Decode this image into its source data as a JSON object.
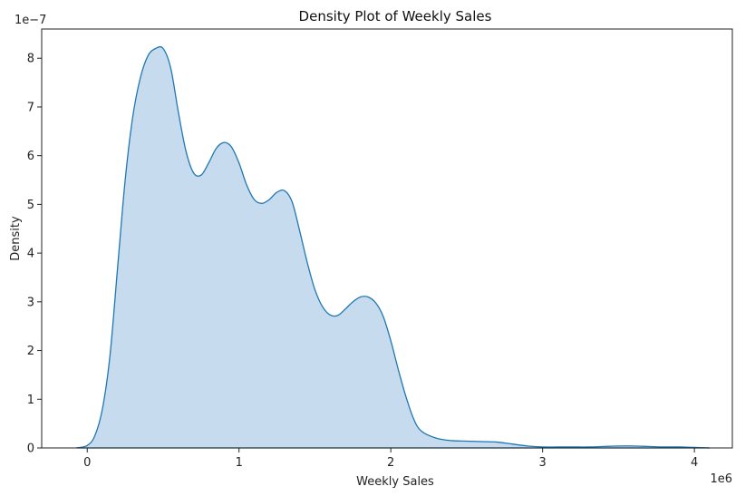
{
  "chart_data": {
    "type": "area",
    "title": "Density Plot of Weekly Sales",
    "xlabel": "Weekly Sales",
    "ylabel": "Density",
    "x_scale_label": "1e6",
    "y_scale_label": "1e−7",
    "xlim": [
      -0.3,
      4.25
    ],
    "ylim": [
      0,
      8.6
    ],
    "x_ticks": [
      0,
      1,
      2,
      3,
      4
    ],
    "x_tick_labels": [
      "0",
      "1",
      "2",
      "3",
      "4"
    ],
    "y_ticks": [
      0,
      1,
      2,
      3,
      4,
      5,
      6,
      7,
      8
    ],
    "y_tick_labels": [
      "0",
      "1",
      "2",
      "3",
      "4",
      "5",
      "6",
      "7",
      "8"
    ],
    "grid": false,
    "colors": {
      "line": "#1f77b4",
      "fill": "#c6dcee"
    },
    "series": [
      {
        "x": [
          -0.07,
          0.0,
          0.05,
          0.1,
          0.15,
          0.2,
          0.25,
          0.3,
          0.35,
          0.4,
          0.45,
          0.5,
          0.55,
          0.6,
          0.65,
          0.7,
          0.75,
          0.8,
          0.85,
          0.9,
          0.95,
          1.0,
          1.05,
          1.1,
          1.15,
          1.2,
          1.25,
          1.3,
          1.35,
          1.4,
          1.45,
          1.5,
          1.55,
          1.6,
          1.65,
          1.7,
          1.75,
          1.8,
          1.85,
          1.9,
          1.95,
          2.0,
          2.05,
          2.1,
          2.15,
          2.2,
          2.3,
          2.4,
          2.5,
          2.6,
          2.7,
          2.8,
          2.9,
          3.0,
          3.1,
          3.2,
          3.3,
          3.4,
          3.5,
          3.6,
          3.7,
          3.8,
          3.9,
          4.0,
          4.1
        ],
        "y": [
          0.0,
          0.05,
          0.25,
          0.8,
          1.9,
          3.7,
          5.5,
          6.8,
          7.6,
          8.05,
          8.2,
          8.2,
          7.8,
          6.9,
          6.1,
          5.65,
          5.6,
          5.85,
          6.15,
          6.27,
          6.18,
          5.85,
          5.4,
          5.1,
          5.02,
          5.1,
          5.25,
          5.28,
          5.05,
          4.45,
          3.8,
          3.25,
          2.9,
          2.73,
          2.72,
          2.85,
          3.0,
          3.1,
          3.1,
          2.98,
          2.7,
          2.2,
          1.6,
          1.05,
          0.6,
          0.35,
          0.2,
          0.15,
          0.14,
          0.13,
          0.12,
          0.08,
          0.04,
          0.02,
          0.02,
          0.02,
          0.02,
          0.03,
          0.04,
          0.04,
          0.03,
          0.02,
          0.02,
          0.01,
          0.0
        ]
      }
    ]
  }
}
